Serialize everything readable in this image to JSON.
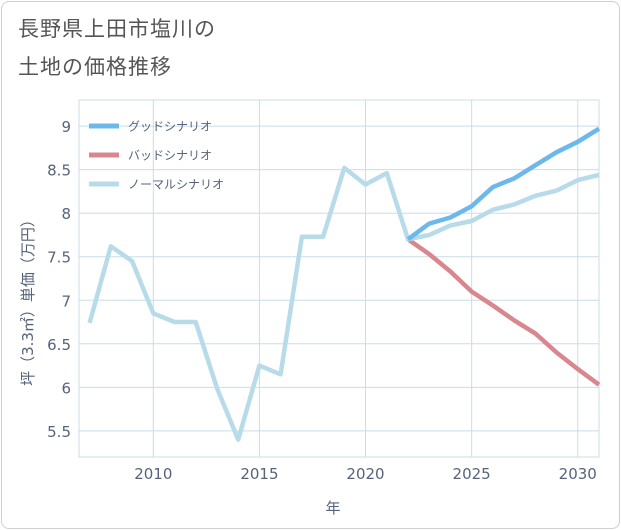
{
  "title_line1": "長野県上田市塩川の",
  "title_line2": "土地の価格推移",
  "colors": {
    "good": "#6cb8ec",
    "bad": "#d9878f",
    "normal": "#b8dbea",
    "grid": "#c9dde9",
    "axis_text": "#56637a"
  },
  "chart_data": {
    "type": "line",
    "xlabel": "年",
    "ylabel": "坪（3.3㎡）単価（万円）",
    "xlim": [
      2006.5,
      2031
    ],
    "ylim": [
      5.2,
      9.3
    ],
    "xticks": [
      2010,
      2015,
      2020,
      2025,
      2030
    ],
    "yticks": [
      5.5,
      6,
      6.5,
      7,
      7.5,
      8,
      8.5,
      9
    ],
    "legend_position": "top-left",
    "series": [
      {
        "name": "グッドシナリオ",
        "key": "good",
        "x": [
          2022,
          2023,
          2024,
          2025,
          2026,
          2027,
          2028,
          2029,
          2030,
          2031
        ],
        "y": [
          7.7,
          7.88,
          7.95,
          8.08,
          8.3,
          8.4,
          8.55,
          8.7,
          8.82,
          8.97
        ]
      },
      {
        "name": "バッドシナリオ",
        "key": "bad",
        "x": [
          2022,
          2023,
          2024,
          2025,
          2026,
          2027,
          2028,
          2029,
          2030,
          2031
        ],
        "y": [
          7.7,
          7.53,
          7.33,
          7.1,
          6.94,
          6.77,
          6.62,
          6.4,
          6.21,
          6.03
        ]
      },
      {
        "name": "ノーマルシナリオ",
        "key": "normal",
        "x": [
          2007,
          2008,
          2009,
          2010,
          2011,
          2012,
          2013,
          2014,
          2015,
          2016,
          2017,
          2018,
          2019,
          2020,
          2021,
          2022,
          2023,
          2024,
          2025,
          2026,
          2027,
          2028,
          2029,
          2030,
          2031
        ],
        "y": [
          6.74,
          7.62,
          7.45,
          6.85,
          6.75,
          6.75,
          5.99,
          5.4,
          6.25,
          6.15,
          7.73,
          7.73,
          8.52,
          8.33,
          8.46,
          7.7,
          7.75,
          7.86,
          7.91,
          8.04,
          8.1,
          8.2,
          8.26,
          8.38,
          8.44
        ]
      }
    ]
  }
}
